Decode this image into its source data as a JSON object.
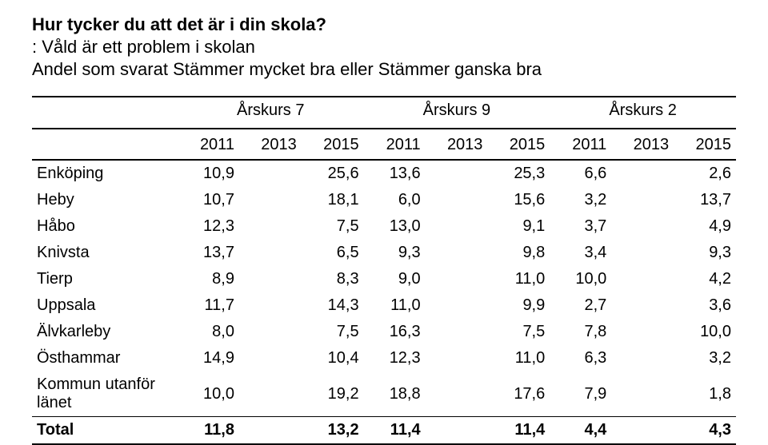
{
  "heading": {
    "title": "Hur tycker du att det är i din skola?",
    "line1": ": Våld är ett problem i skolan",
    "line2": "Andel som svarat Stämmer mycket bra eller Stämmer ganska bra"
  },
  "table": {
    "group_headers": [
      "Årskurs 7",
      "Årskurs 9",
      "Årskurs 2"
    ],
    "year_headers": [
      "2011",
      "2013",
      "2015",
      "2011",
      "2013",
      "2015",
      "2011",
      "2013",
      "2015"
    ],
    "rows": [
      {
        "label": "Enköping",
        "values": [
          "10,9",
          "",
          "25,6",
          "13,6",
          "",
          "25,3",
          "6,6",
          "",
          "2,6"
        ]
      },
      {
        "label": "Heby",
        "values": [
          "10,7",
          "",
          "18,1",
          "6,0",
          "",
          "15,6",
          "3,2",
          "",
          "13,7"
        ]
      },
      {
        "label": "Håbo",
        "values": [
          "12,3",
          "",
          "7,5",
          "13,0",
          "",
          "9,1",
          "3,7",
          "",
          "4,9"
        ]
      },
      {
        "label": "Knivsta",
        "values": [
          "13,7",
          "",
          "6,5",
          "9,3",
          "",
          "9,8",
          "3,4",
          "",
          "9,3"
        ]
      },
      {
        "label": "Tierp",
        "values": [
          "8,9",
          "",
          "8,3",
          "9,0",
          "",
          "11,0",
          "10,0",
          "",
          "4,2"
        ]
      },
      {
        "label": "Uppsala",
        "values": [
          "11,7",
          "",
          "14,3",
          "11,0",
          "",
          "9,9",
          "2,7",
          "",
          "3,6"
        ]
      },
      {
        "label": "Älvkarleby",
        "values": [
          "8,0",
          "",
          "7,5",
          "16,3",
          "",
          "7,5",
          "7,8",
          "",
          "10,0"
        ]
      },
      {
        "label": "Östhammar",
        "values": [
          "14,9",
          "",
          "10,4",
          "12,3",
          "",
          "11,0",
          "6,3",
          "",
          "3,2"
        ]
      },
      {
        "label": "Kommun utanför länet",
        "values": [
          "10,0",
          "",
          "19,2",
          "18,8",
          "",
          "17,6",
          "7,9",
          "",
          "1,8"
        ]
      }
    ],
    "total": {
      "label": "Total",
      "values": [
        "11,8",
        "",
        "13,2",
        "11,4",
        "",
        "11,4",
        "4,4",
        "",
        "4,3"
      ]
    }
  },
  "style": {
    "font_family": "Arial",
    "title_fontsize": 22,
    "body_fontsize": 20,
    "text_color": "#000000",
    "background_color": "#ffffff",
    "rule_color": "#000000"
  }
}
